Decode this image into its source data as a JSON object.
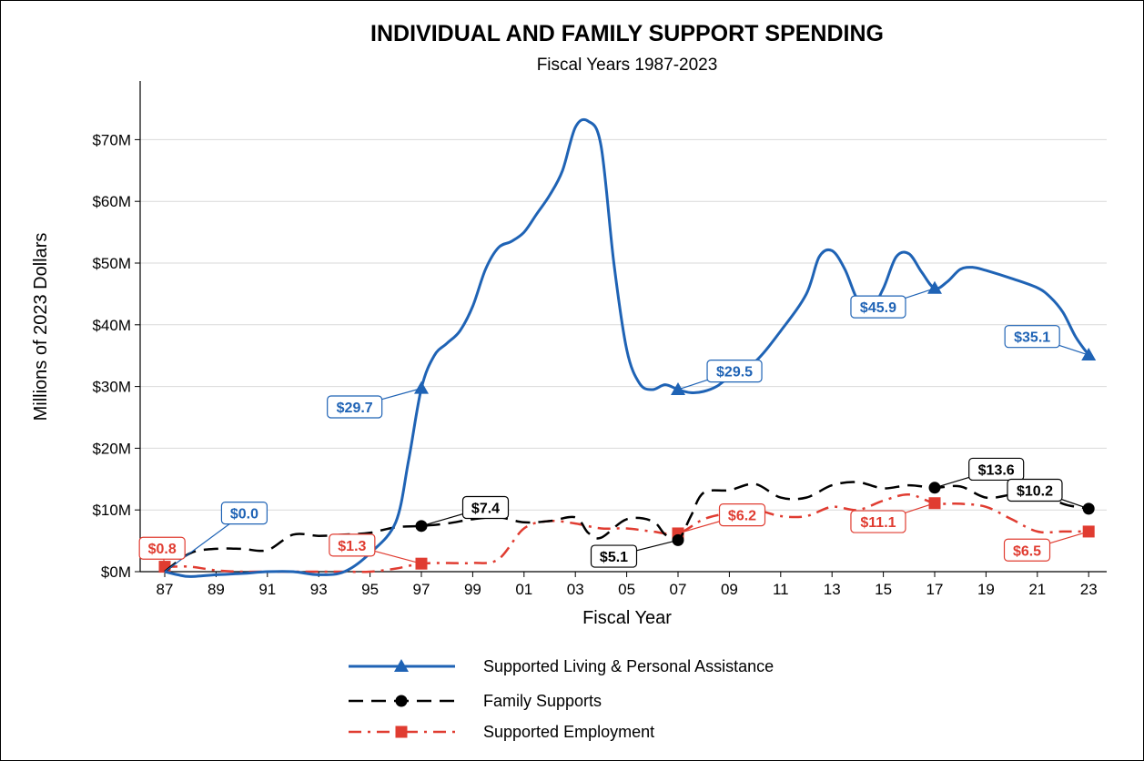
{
  "chart_data": {
    "type": "line",
    "title": "INDIVIDUAL AND FAMILY SUPPORT SPENDING",
    "subtitle": "Fiscal Years 1987-2023",
    "xlabel": "Fiscal Year",
    "ylabel": "Millions of 2023 Dollars",
    "x_ticks": [
      "87",
      "89",
      "91",
      "93",
      "95",
      "97",
      "99",
      "01",
      "03",
      "05",
      "07",
      "09",
      "11",
      "13",
      "15",
      "17",
      "19",
      "21",
      "23"
    ],
    "y_ticks": [
      "$0M",
      "$10M",
      "$20M",
      "$30M",
      "$40M",
      "$50M",
      "$60M",
      "$70M"
    ],
    "ylim": [
      0,
      75
    ],
    "xlim": [
      1987,
      2023
    ],
    "grid": "horizontal",
    "legend_position": "bottom",
    "series": [
      {
        "name": "Supported Living & Personal Assistance",
        "color": "#1f63b5",
        "line_style": "solid",
        "marker": "triangle",
        "points": [
          [
            1987,
            0
          ],
          [
            1987.5,
            -0.5
          ],
          [
            1988,
            -0.8
          ],
          [
            1989,
            -0.5
          ],
          [
            1990,
            -0.3
          ],
          [
            1991,
            0
          ],
          [
            1992,
            0
          ],
          [
            1993,
            -0.5
          ],
          [
            1994,
            0
          ],
          [
            1995,
            3
          ],
          [
            1996,
            8
          ],
          [
            1996.5,
            18
          ],
          [
            1997,
            29.7
          ],
          [
            1997.5,
            35
          ],
          [
            1998,
            37
          ],
          [
            1998.5,
            39
          ],
          [
            1999,
            43
          ],
          [
            1999.5,
            49
          ],
          [
            2000,
            52.5
          ],
          [
            2000.5,
            53.5
          ],
          [
            2001,
            55
          ],
          [
            2001.5,
            58
          ],
          [
            2002,
            61
          ],
          [
            2002.5,
            65
          ],
          [
            2003,
            72
          ],
          [
            2003.5,
            73
          ],
          [
            2004,
            69
          ],
          [
            2004.5,
            50
          ],
          [
            2005,
            36
          ],
          [
            2005.5,
            30.5
          ],
          [
            2006,
            29.5
          ],
          [
            2006.5,
            30.3
          ],
          [
            2007,
            29.5
          ],
          [
            2007.5,
            29
          ],
          [
            2008,
            29.2
          ],
          [
            2008.5,
            30
          ],
          [
            2009,
            31.5
          ],
          [
            2010,
            34
          ],
          [
            2011,
            39
          ],
          [
            2012,
            45
          ],
          [
            2012.5,
            51
          ],
          [
            2013,
            52
          ],
          [
            2013.5,
            49
          ],
          [
            2014,
            44
          ],
          [
            2014.5,
            42.5
          ],
          [
            2015,
            45.9
          ],
          [
            2015.5,
            51
          ],
          [
            2016,
            51.5
          ],
          [
            2016.5,
            48.5
          ],
          [
            2017,
            45.9
          ],
          [
            2017.5,
            47
          ],
          [
            2018,
            49
          ],
          [
            2018.5,
            49.3
          ],
          [
            2019,
            48.8
          ],
          [
            2020,
            47.5
          ],
          [
            2021,
            46
          ],
          [
            2021.5,
            44.5
          ],
          [
            2022,
            42
          ],
          [
            2022.5,
            38
          ],
          [
            2023,
            35.1
          ]
        ],
        "markers": [
          [
            1997,
            29.7
          ],
          [
            2007,
            29.5
          ],
          [
            2017,
            45.9
          ],
          [
            2023,
            35.1
          ]
        ]
      },
      {
        "name": "Family Supports",
        "color": "#000000",
        "line_style": "dashed",
        "marker": "circle",
        "points": [
          [
            1987,
            0
          ],
          [
            1988,
            3
          ],
          [
            1989,
            3.7
          ],
          [
            1990,
            3.7
          ],
          [
            1991,
            3.5
          ],
          [
            1992,
            6
          ],
          [
            1993,
            5.8
          ],
          [
            1994,
            6
          ],
          [
            1995,
            6.3
          ],
          [
            1996,
            7.2
          ],
          [
            1997,
            7.4
          ],
          [
            1998,
            7.8
          ],
          [
            1999,
            8.5
          ],
          [
            2000,
            8.8
          ],
          [
            2001,
            8
          ],
          [
            2002,
            8.2
          ],
          [
            2003,
            8.8
          ],
          [
            2003.5,
            6.3
          ],
          [
            2004,
            5.5
          ],
          [
            2005,
            8.5
          ],
          [
            2006,
            8.2
          ],
          [
            2006.5,
            6
          ],
          [
            2007,
            5.1
          ],
          [
            2007.5,
            9
          ],
          [
            2008,
            12.8
          ],
          [
            2009,
            13.2
          ],
          [
            2010,
            14.2
          ],
          [
            2011,
            12
          ],
          [
            2012,
            12
          ],
          [
            2013,
            14
          ],
          [
            2014,
            14.5
          ],
          [
            2015,
            13.5
          ],
          [
            2016,
            14
          ],
          [
            2017,
            13.6
          ],
          [
            2018,
            13.8
          ],
          [
            2019,
            12
          ],
          [
            2020,
            12.5
          ],
          [
            2021,
            13.2
          ],
          [
            2022,
            11
          ],
          [
            2023,
            10.2
          ]
        ],
        "markers": [
          [
            1997,
            7.4
          ],
          [
            2007,
            5.1
          ],
          [
            2017,
            13.6
          ],
          [
            2023,
            10.2
          ]
        ]
      },
      {
        "name": "Supported Employment",
        "color": "#e03c31",
        "line_style": "dashdot",
        "marker": "square",
        "points": [
          [
            1987,
            0.8
          ],
          [
            1988,
            0.8
          ],
          [
            1989,
            0.2
          ],
          [
            1990,
            0
          ],
          [
            1991,
            0
          ],
          [
            1992,
            0
          ],
          [
            1993,
            0
          ],
          [
            1994,
            0
          ],
          [
            1995,
            0
          ],
          [
            1996,
            0.5
          ],
          [
            1997,
            1.3
          ],
          [
            1998,
            1.4
          ],
          [
            1999,
            1.4
          ],
          [
            2000,
            2
          ],
          [
            2001,
            7
          ],
          [
            2002,
            8.2
          ],
          [
            2003,
            7.8
          ],
          [
            2004,
            7
          ],
          [
            2005,
            7
          ],
          [
            2006,
            6.5
          ],
          [
            2007,
            6.2
          ],
          [
            2008,
            8.5
          ],
          [
            2009,
            9.5
          ],
          [
            2010,
            10
          ],
          [
            2011,
            9
          ],
          [
            2012,
            9
          ],
          [
            2013,
            10.5
          ],
          [
            2014,
            10
          ],
          [
            2015,
            11.5
          ],
          [
            2016,
            12.5
          ],
          [
            2017,
            11.1
          ],
          [
            2018,
            11
          ],
          [
            2019,
            10.5
          ],
          [
            2020,
            8.5
          ],
          [
            2021,
            6.5
          ],
          [
            2022,
            6.5
          ],
          [
            2023,
            6.5
          ]
        ],
        "markers": [
          [
            1987,
            0.8
          ],
          [
            1997,
            1.3
          ],
          [
            2007,
            6.2
          ],
          [
            2017,
            11.1
          ],
          [
            2023,
            6.5
          ]
        ]
      }
    ],
    "annotations": [
      {
        "text": "$0.0",
        "series": 0,
        "x": 1987,
        "y": 0,
        "label_x": 1990.1,
        "label_y": 9.5
      },
      {
        "text": "$29.7",
        "series": 0,
        "x": 1997,
        "y": 29.7,
        "label_x": 1994.4,
        "label_y": 26.7
      },
      {
        "text": "$29.5",
        "series": 0,
        "x": 2007,
        "y": 29.5,
        "label_x": 2009.2,
        "label_y": 32.5
      },
      {
        "text": "$45.9",
        "series": 0,
        "x": 2017,
        "y": 45.9,
        "label_x": 2014.8,
        "label_y": 42.9
      },
      {
        "text": "$35.1",
        "series": 0,
        "x": 2023,
        "y": 35.1,
        "label_x": 2020.8,
        "label_y": 38.1
      },
      {
        "text": "$7.4",
        "series": 1,
        "x": 1997,
        "y": 7.4,
        "label_x": 1999.5,
        "label_y": 10.4
      },
      {
        "text": "$5.1",
        "series": 1,
        "x": 2007,
        "y": 5.1,
        "label_x": 2004.5,
        "label_y": 2.5
      },
      {
        "text": "$13.6",
        "series": 1,
        "x": 2017,
        "y": 13.6,
        "label_x": 2019.4,
        "label_y": 16.6
      },
      {
        "text": "$10.2",
        "series": 1,
        "x": 2023,
        "y": 10.2,
        "label_x": 2020.9,
        "label_y": 13.2
      },
      {
        "text": "$0.8",
        "series": 2,
        "x": 1987,
        "y": 0.8,
        "label_x": 1986.9,
        "label_y": 3.8
      },
      {
        "text": "$1.3",
        "series": 2,
        "x": 1997,
        "y": 1.3,
        "label_x": 1994.3,
        "label_y": 4.3
      },
      {
        "text": "$6.2",
        "series": 2,
        "x": 2007,
        "y": 6.2,
        "label_x": 2009.5,
        "label_y": 9.2
      },
      {
        "text": "$11.1",
        "series": 2,
        "x": 2017,
        "y": 11.1,
        "label_x": 2014.8,
        "label_y": 8.1
      },
      {
        "text": "$6.5",
        "series": 2,
        "x": 2023,
        "y": 6.5,
        "label_x": 2020.6,
        "label_y": 3.5
      }
    ]
  }
}
